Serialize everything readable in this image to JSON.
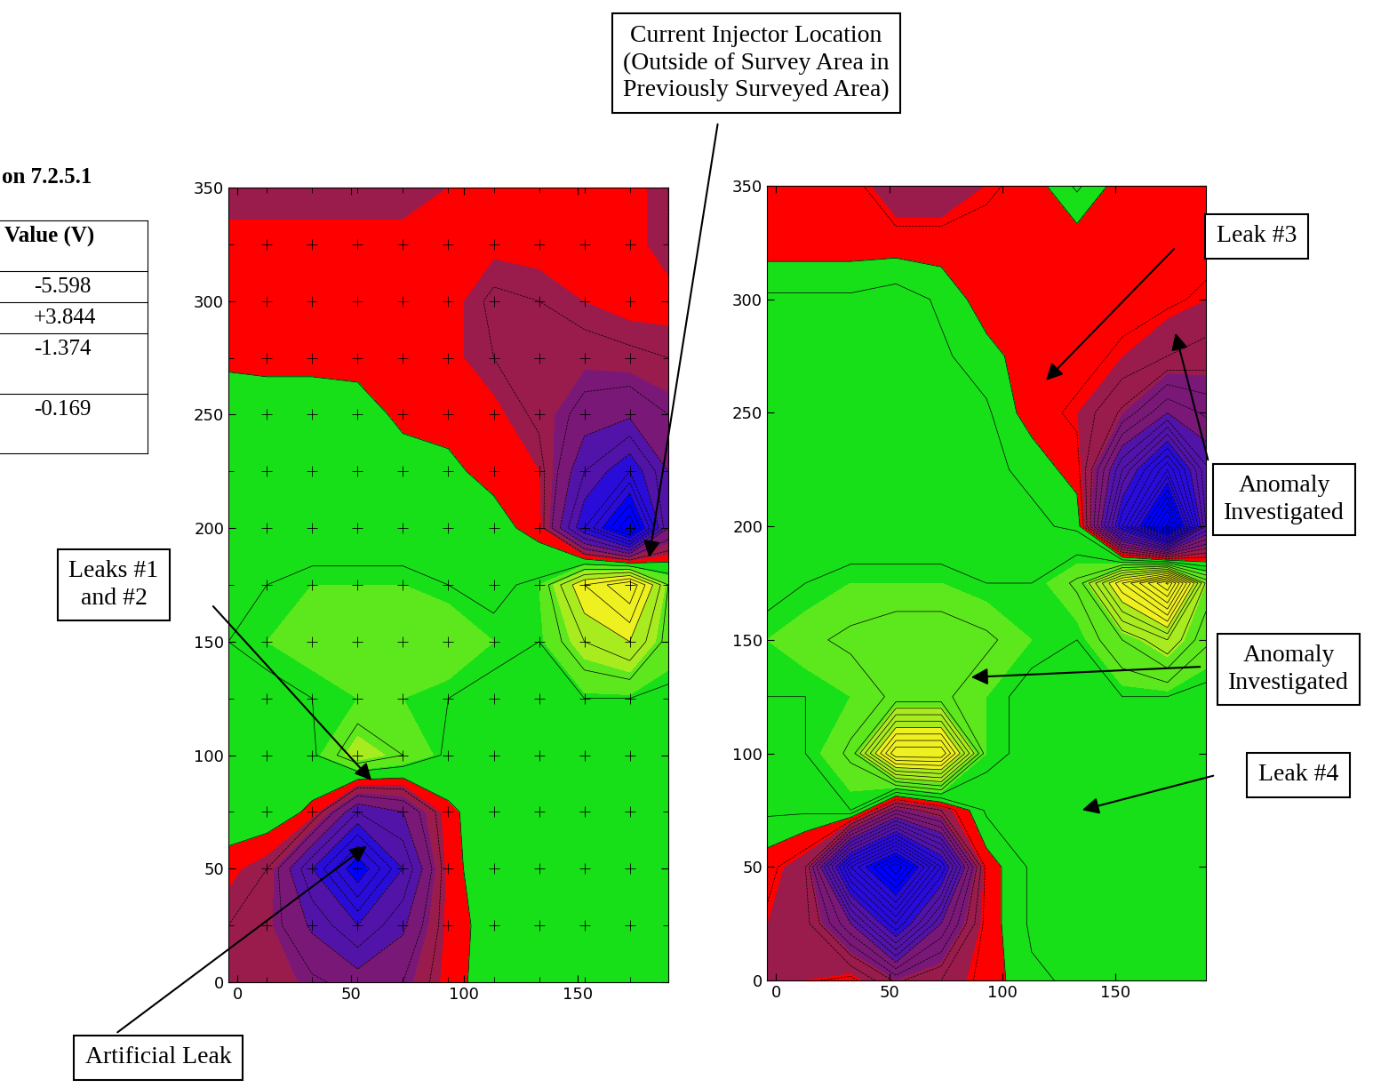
{
  "chart_data": [
    {
      "type": "contour",
      "x": [
        -4,
        13,
        33,
        53,
        73,
        93,
        113,
        133,
        153,
        173,
        190
      ],
      "y": [
        0,
        25,
        50,
        75,
        100,
        125,
        150,
        175,
        200,
        225,
        250,
        275,
        300,
        325,
        350
      ],
      "values": [
        [
          -0.5,
          -0.6,
          -0.9,
          -1.2,
          -1.0,
          -0.15,
          0.2,
          0.3,
          0.3,
          0.3,
          0.3
        ],
        [
          -0.5,
          -0.7,
          -1.6,
          -2.5,
          -1.6,
          -0.2,
          0.2,
          0.3,
          0.3,
          0.3,
          0.3
        ],
        [
          -0.2,
          -0.5,
          -2.5,
          -4.5,
          -2.5,
          -0.15,
          0.3,
          0.3,
          0.3,
          0.3,
          0.3
        ],
        [
          0.3,
          0.3,
          -0.1,
          -2.0,
          -1.5,
          -0.1,
          0.3,
          0.3,
          0.3,
          0.3,
          0.3
        ],
        [
          0.3,
          0.3,
          0.4,
          1.5,
          1.0,
          0.4,
          0.3,
          0.3,
          0.4,
          0.4,
          0.3
        ],
        [
          0.4,
          0.4,
          0.5,
          0.6,
          0.6,
          0.5,
          0.4,
          0.4,
          0.5,
          0.5,
          0.4
        ],
        [
          0.5,
          0.6,
          0.7,
          0.8,
          0.9,
          0.8,
          0.6,
          0.5,
          1.5,
          2.0,
          0.8
        ],
        [
          0.4,
          0.5,
          0.6,
          0.6,
          0.6,
          0.5,
          0.4,
          0.6,
          2.5,
          3.5,
          1.0
        ],
        [
          0.3,
          0.3,
          0.3,
          0.3,
          0.3,
          0.3,
          0.2,
          -0.2,
          -3.0,
          -5.6,
          -1.5
        ],
        [
          0.3,
          0.3,
          0.3,
          0.3,
          0.2,
          0.1,
          -0.15,
          -0.3,
          -2.0,
          -3.0,
          -1.5
        ],
        [
          0.3,
          0.3,
          0.3,
          0.2,
          -0.1,
          -0.15,
          -0.2,
          -0.6,
          -1.2,
          -1.4,
          -1.0
        ],
        [
          -0.1,
          -0.15,
          -0.15,
          -0.15,
          -0.15,
          -0.2,
          -0.5,
          -0.6,
          -0.7,
          -0.6,
          -0.5
        ],
        [
          -0.15,
          -0.15,
          -0.15,
          -0.15,
          -0.15,
          -0.15,
          -0.6,
          -0.5,
          -0.3,
          -0.15,
          -0.15
        ],
        [
          -0.15,
          -0.15,
          -0.15,
          -0.15,
          -0.15,
          -0.15,
          -0.2,
          -0.15,
          -0.15,
          -0.15,
          -0.5
        ],
        [
          -0.5,
          -0.5,
          -0.5,
          -0.5,
          -0.5,
          -0.3,
          -0.15,
          -0.15,
          -0.15,
          -0.15,
          -0.5
        ]
      ],
      "levels": [
        -6,
        -4,
        -2.5,
        -1.5,
        -0.8,
        -0.3,
        0,
        0.6,
        1.2,
        2,
        4
      ],
      "colors": [
        "#0000ff",
        "#2a0cd8",
        "#5214a8",
        "#7a1878",
        "#9a1c4c",
        "#ff0000",
        "#18e018",
        "#5ce81c",
        "#a8ec20",
        "#eef020"
      ],
      "marker": "+",
      "xlim": [
        -4,
        190
      ],
      "ylim": [
        0,
        350
      ],
      "xticks": [
        0,
        50,
        100,
        150
      ],
      "yticks": [
        0,
        50,
        100,
        150,
        200,
        250,
        300,
        350
      ]
    },
    {
      "type": "contour",
      "x": [
        -4,
        13,
        33,
        53,
        73,
        93,
        113,
        133,
        153,
        173,
        190
      ],
      "y": [
        0,
        25,
        50,
        75,
        100,
        125,
        150,
        175,
        200,
        225,
        250,
        275,
        300,
        325,
        350
      ],
      "values": [
        [
          -0.5,
          -0.3,
          -0.15,
          -0.8,
          -0.5,
          -0.15,
          0.2,
          0.3,
          0.3,
          0.3,
          0.3
        ],
        [
          -0.3,
          -0.4,
          -1.5,
          -3.0,
          -1.5,
          -0.15,
          0.3,
          0.3,
          0.3,
          0.3,
          0.3
        ],
        [
          -0.15,
          -0.5,
          -3.5,
          -5.0,
          -3.0,
          -0.15,
          0.3,
          0.3,
          0.3,
          0.3,
          0.3
        ],
        [
          0.3,
          0.3,
          0.5,
          -1.0,
          -0.5,
          0.3,
          0.3,
          0.3,
          0.3,
          0.3,
          0.3
        ],
        [
          0.4,
          0.5,
          0.8,
          3.0,
          3.0,
          0.6,
          0.4,
          0.3,
          0.3,
          0.4,
          0.4
        ],
        [
          0.5,
          0.5,
          0.6,
          0.8,
          0.8,
          0.6,
          0.4,
          0.4,
          0.5,
          0.5,
          0.4
        ],
        [
          0.6,
          0.7,
          0.8,
          0.9,
          0.9,
          0.8,
          0.6,
          0.5,
          1.0,
          1.5,
          0.8
        ],
        [
          0.4,
          0.5,
          0.6,
          0.6,
          0.6,
          0.5,
          0.5,
          0.8,
          2.5,
          3.8,
          1.2
        ],
        [
          0.3,
          0.3,
          0.3,
          0.3,
          0.3,
          0.3,
          0.3,
          0.2,
          -3.0,
          -5.6,
          -2.0
        ],
        [
          0.3,
          0.3,
          0.3,
          0.3,
          0.3,
          0.3,
          0.2,
          -0.15,
          -2.0,
          -3.5,
          -1.8
        ],
        [
          0.3,
          0.3,
          0.3,
          0.3,
          0.3,
          0.3,
          -0.15,
          -0.3,
          -0.8,
          -1.5,
          -1.2
        ],
        [
          0.3,
          0.3,
          0.3,
          0.4,
          0.3,
          0.1,
          -0.15,
          -0.15,
          -0.3,
          -0.5,
          -0.6
        ],
        [
          0.3,
          0.3,
          0.3,
          0.4,
          0.2,
          -0.15,
          -0.15,
          -0.15,
          -0.15,
          -0.2,
          -0.3
        ],
        [
          -0.15,
          -0.15,
          -0.15,
          -0.15,
          -0.15,
          -0.15,
          -0.15,
          -0.15,
          -0.15,
          -0.15,
          -0.15
        ],
        [
          -0.15,
          -0.15,
          -0.15,
          -0.5,
          -0.5,
          -0.3,
          -0.15,
          0.3,
          -0.15,
          -0.15,
          -0.15
        ]
      ],
      "levels": [
        -6,
        -4,
        -2.5,
        -1.5,
        -0.8,
        -0.3,
        0,
        0.6,
        1.2,
        2,
        4
      ],
      "colors": [
        "#0000ff",
        "#2a0cd8",
        "#5214a8",
        "#7a1878",
        "#9a1c4c",
        "#ff0000",
        "#18e018",
        "#5ce81c",
        "#a8ec20",
        "#eef020"
      ],
      "xlim": [
        -4,
        190
      ],
      "ylim": [
        0,
        350
      ],
      "xticks": [
        0,
        50,
        100,
        150
      ],
      "yticks": [
        0,
        50,
        100,
        150,
        200,
        250,
        300,
        350
      ]
    }
  ],
  "annotations": [
    {
      "text": "Current Injector Location\n(Outside of Survey Area in\nPreviously Surveyed Area)"
    },
    {
      "text": "Leaks #1\nand #2"
    },
    {
      "text": "Artificial Leak"
    },
    {
      "text": "Leak #3"
    },
    {
      "text": "Anomaly\nInvestigated"
    },
    {
      "text": "Anomaly\nInvestigated"
    },
    {
      "text": "Leak #4"
    }
  ],
  "table": {
    "title": "on 7.2.5.1",
    "header": "Value (V)",
    "rows": [
      "-5.598",
      "+3.844",
      "-1.374",
      "-0.169"
    ]
  }
}
